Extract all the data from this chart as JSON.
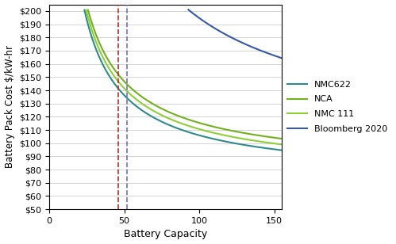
{
  "title": "",
  "xlabel": "Battery Capacity",
  "ylabel": "Battery Pack Cost $/kW-hr",
  "xlim": [
    0,
    155
  ],
  "ylim": [
    50,
    200
  ],
  "yticks": [
    50,
    60,
    70,
    80,
    90,
    100,
    110,
    120,
    130,
    140,
    150,
    160,
    170,
    180,
    190,
    200
  ],
  "xticks": [
    0,
    50,
    100,
    150
  ],
  "vline_red": 46,
  "vline_blue": 52,
  "series": [
    {
      "label": "NMC622",
      "color": "#2e8a8c",
      "A": 2800,
      "k": 0.5,
      "c": 72
    },
    {
      "label": "NCA",
      "color": "#72b01d",
      "A": 3000,
      "k": 0.5,
      "c": 68
    },
    {
      "label": "NMC 111",
      "color": "#8ecf38",
      "A": 2900,
      "k": 0.5,
      "c": 70
    },
    {
      "label": "Bloomberg 2020",
      "color": "#3558a8",
      "A": 5500,
      "k": 0.5,
      "c": 88
    }
  ],
  "background_color": "#ffffff",
  "grid_color": "#cccccc"
}
